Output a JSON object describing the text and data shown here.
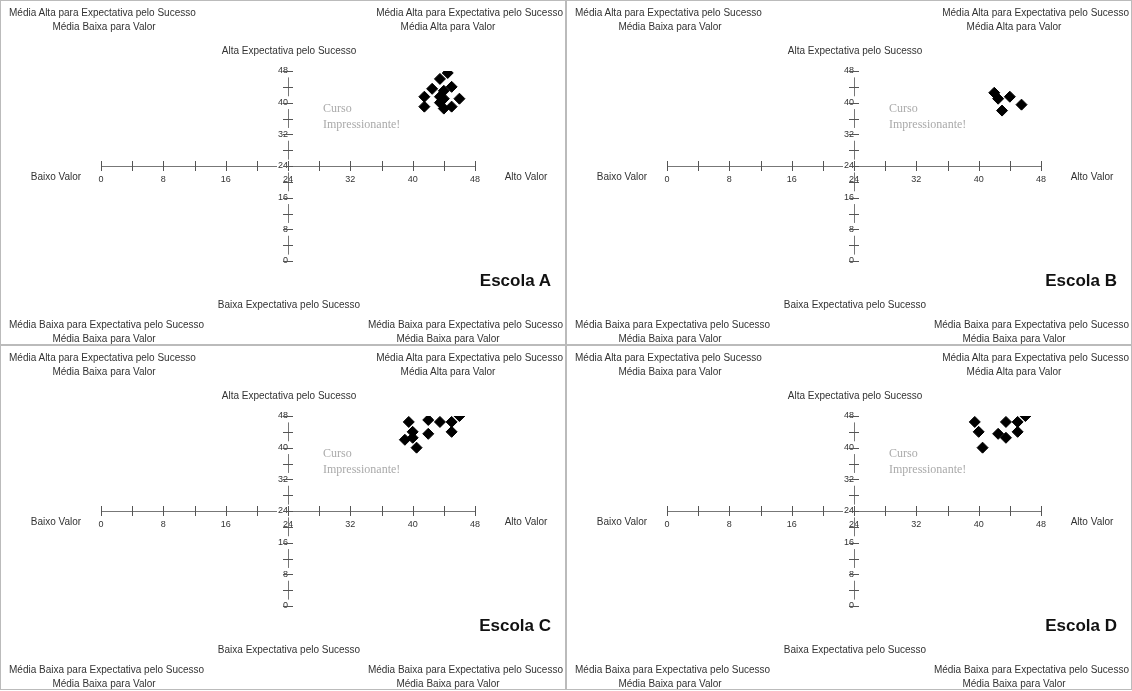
{
  "chart_data": [
    {
      "type": "scatter",
      "title": "Escola A",
      "annotations": [
        "Média Alta para Expectativa pelo Sucesso",
        "Média Baixa para Valor",
        "Média Alta para Expectativa pelo Sucesso",
        "Média Alta para Valor",
        "Média Baixa para Expectativa pelo Sucesso",
        "Média Baixa para Valor",
        "Média Baixa para Expectativa pelo Sucesso",
        "Média Baixa para Valor",
        "Alta Expectativa pelo Sucesso",
        "Baixa Expectativa pelo Sucesso",
        "Baixo Valor",
        "Alto Valor",
        "Curso Impressionante!"
      ],
      "marker": "diamond",
      "xlim": [
        0,
        48
      ],
      "ylim": [
        0,
        48
      ],
      "xticks": [
        0,
        8,
        16,
        24,
        32,
        40,
        48
      ],
      "yticks": [
        0,
        8,
        16,
        24,
        32,
        40,
        48
      ],
      "series": [
        {
          "color": "#000000",
          "x": [
            44.5,
            43.5,
            42.5,
            45,
            41.5,
            44,
            43.5,
            44,
            43.5,
            46,
            41.5,
            45,
            44
          ],
          "values": [
            47.5,
            46,
            43.5,
            44,
            41.5,
            43,
            41.5,
            41,
            40,
            41,
            39,
            39,
            38.5
          ]
        }
      ]
    },
    {
      "type": "scatter",
      "title": "Escola B",
      "annotations": [
        "Média Alta para Expectativa pelo Sucesso",
        "Média Baixa para Valor",
        "Média Alta para Expectativa pelo Sucesso",
        "Média Alta para Valor",
        "Média Baixa para Expectativa pelo Sucesso",
        "Média Baixa para Valor",
        "Média Baixa para Expectativa pelo Sucesso",
        "Média Baixa para Valor",
        "Alta Expectativa pelo Sucesso",
        "Baixa Expectativa pelo Sucesso",
        "Baixo Valor",
        "Alto Valor",
        "Curso Impressionante!"
      ],
      "marker": "diamond",
      "xlim": [
        0,
        48
      ],
      "ylim": [
        0,
        48
      ],
      "xticks": [
        0,
        8,
        16,
        24,
        32,
        40,
        48
      ],
      "yticks": [
        0,
        8,
        16,
        24,
        32,
        40,
        48
      ],
      "series": [
        {
          "color": "#000000",
          "x": [
            42,
            42.5,
            44,
            45.5,
            43
          ],
          "values": [
            42.5,
            41,
            41.5,
            39.5,
            38
          ]
        }
      ]
    },
    {
      "type": "scatter",
      "title": "Escola C",
      "annotations": [
        "Média Alta para Expectativa pelo Sucesso",
        "Média Baixa para Valor",
        "Média Alta para Expectativa pelo Sucesso",
        "Média Alta para Valor",
        "Média Baixa para Expectativa pelo Sucesso",
        "Média Baixa para Valor",
        "Média Baixa para Expectativa pelo Sucesso",
        "Média Baixa para Valor",
        "Alta Expectativa pelo Sucesso",
        "Baixa Expectativa pelo Sucesso",
        "Baixo Valor",
        "Alto Valor",
        "Curso Impressionante!"
      ],
      "marker": "diamond",
      "xlim": [
        0,
        48
      ],
      "ylim": [
        0,
        48
      ],
      "xticks": [
        0,
        8,
        16,
        24,
        32,
        40,
        48
      ],
      "yticks": [
        0,
        8,
        16,
        24,
        32,
        40,
        48
      ],
      "series": [
        {
          "color": "#000000",
          "x": [
            39.5,
            42,
            43.5,
            45,
            46,
            40,
            42,
            45,
            40,
            39,
            40.5
          ],
          "values": [
            46.5,
            47,
            46.5,
            46.5,
            48,
            44,
            43.5,
            44,
            42.5,
            42,
            40
          ]
        }
      ]
    },
    {
      "type": "scatter",
      "title": "Escola D",
      "annotations": [
        "Média Alta para Expectativa pelo Sucesso",
        "Média Baixa para Valor",
        "Média Alta para Expectativa pelo Sucesso",
        "Média Alta para Valor",
        "Média Baixa para Expectativa pelo Sucesso",
        "Média Baixa para Valor",
        "Média Baixa para Expectativa pelo Sucesso",
        "Média Baixa para Valor",
        "Alta Expectativa pelo Sucesso",
        "Baixa Expectativa pelo Sucesso",
        "Baixo Valor",
        "Alto Valor",
        "Curso Impressionante!"
      ],
      "marker": "diamond",
      "xlim": [
        0,
        48
      ],
      "ylim": [
        0,
        48
      ],
      "xticks": [
        0,
        8,
        16,
        24,
        32,
        40,
        48
      ],
      "yticks": [
        0,
        8,
        16,
        24,
        32,
        40,
        48
      ],
      "series": [
        {
          "color": "#000000",
          "x": [
            39.5,
            43.5,
            45,
            46,
            40,
            42.5,
            45,
            43.5,
            40.5
          ],
          "values": [
            46.5,
            46.5,
            46.5,
            48,
            44,
            43.5,
            44,
            42.5,
            40
          ]
        }
      ]
    }
  ]
}
